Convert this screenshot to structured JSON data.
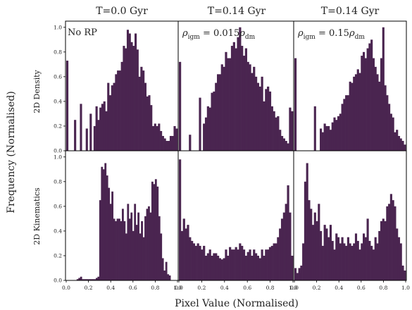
{
  "figure": {
    "xlabel": "Pixel Value (Normalised)",
    "ylabel": "Frequency (Normalised)",
    "columns": [
      "T=0.0 Gyr",
      "T=0.14 Gyr",
      "T=0.14 Gyr"
    ],
    "rows": [
      "2D Density",
      "2D Kinematics"
    ],
    "annotations": {
      "no_rp": "No RP",
      "rho_low": {
        "rho": "ρ",
        "rho_sub": "igm",
        "eq": " = 0.015",
        "rho2": "ρ",
        "rho2_sub": "dm"
      },
      "rho_high": {
        "rho": "ρ",
        "rho_sub": "igm",
        "eq": " = 0.15",
        "rho2": "ρ",
        "rho2_sub": "dm"
      }
    },
    "xticks": [
      "0.0",
      "0.2",
      "0.4",
      "0.6",
      "0.8",
      "1.0"
    ],
    "yticks": [
      "0.0",
      "0.2",
      "0.4",
      "0.6",
      "0.8",
      "1.0"
    ],
    "bar_color": "#4a2550"
  },
  "chart_data": [
    {
      "type": "bar",
      "panel": "2D Density / T=0.0 Gyr",
      "xlim": [
        0,
        1
      ],
      "ylim": [
        0,
        1.05
      ],
      "values": [
        0.73,
        0.0,
        0.0,
        0.0,
        0.25,
        0.0,
        0.0,
        0.38,
        0.0,
        0.0,
        0.18,
        0.0,
        0.3,
        0.0,
        0.2,
        0.36,
        0.25,
        0.35,
        0.38,
        0.4,
        0.32,
        0.55,
        0.45,
        0.53,
        0.55,
        0.62,
        0.65,
        0.65,
        0.72,
        0.85,
        0.83,
        0.98,
        0.95,
        0.88,
        0.85,
        0.95,
        0.82,
        0.6,
        0.68,
        0.65,
        0.55,
        0.44,
        0.45,
        0.37,
        0.2,
        0.22,
        0.2,
        0.22,
        0.16,
        0.12,
        0.1,
        0.08,
        0.08,
        0.12,
        0.12,
        0.2,
        0.18
      ]
    },
    {
      "type": "bar",
      "panel": "2D Density / T=0.14 Gyr (ρigm = 0.015ρdm)",
      "xlim": [
        0,
        1
      ],
      "ylim": [
        0,
        1.05
      ],
      "values": [
        0.72,
        0.0,
        0.0,
        0.0,
        0.0,
        0.13,
        0.0,
        0.0,
        0.0,
        0.0,
        0.43,
        0.0,
        0.22,
        0.27,
        0.36,
        0.35,
        0.47,
        0.48,
        0.55,
        0.62,
        0.62,
        0.7,
        0.68,
        0.8,
        0.75,
        0.75,
        0.85,
        0.88,
        0.83,
        0.92,
        1.0,
        0.85,
        0.77,
        0.83,
        0.72,
        0.7,
        0.63,
        0.68,
        0.6,
        0.55,
        0.52,
        0.6,
        0.4,
        0.5,
        0.52,
        0.48,
        0.36,
        0.32,
        0.27,
        0.28,
        0.17,
        0.12,
        0.1,
        0.08,
        0.06,
        0.35,
        0.32
      ]
    },
    {
      "type": "bar",
      "panel": "2D Density / T=0.14 Gyr (ρigm = 0.15ρdm)",
      "xlim": [
        0,
        1
      ],
      "ylim": [
        0,
        1.05
      ],
      "values": [
        0.75,
        0.0,
        0.0,
        0.0,
        0.0,
        0.0,
        0.0,
        0.0,
        0.0,
        0.0,
        0.36,
        0.0,
        0.0,
        0.18,
        0.15,
        0.22,
        0.2,
        0.2,
        0.17,
        0.23,
        0.27,
        0.25,
        0.28,
        0.3,
        0.38,
        0.42,
        0.45,
        0.45,
        0.56,
        0.55,
        0.6,
        0.62,
        0.66,
        0.63,
        0.77,
        0.8,
        0.75,
        0.83,
        0.87,
        0.9,
        0.75,
        0.68,
        0.62,
        0.56,
        0.75,
        1.0,
        0.53,
        0.45,
        0.38,
        0.3,
        0.27,
        0.15,
        0.17,
        0.12,
        0.1,
        0.08,
        0.05
      ]
    },
    {
      "type": "bar",
      "panel": "2D Kinematics / T=0.0 Gyr",
      "xlim": [
        0,
        1
      ],
      "ylim": [
        0,
        1.05
      ],
      "values": [
        0.0,
        0.0,
        0.0,
        0.0,
        0.0,
        0.0,
        0.01,
        0.02,
        0.03,
        0.01,
        0.01,
        0.01,
        0.01,
        0.01,
        0.01,
        0.01,
        0.01,
        0.02,
        0.03,
        0.65,
        0.92,
        0.9,
        0.95,
        0.85,
        0.75,
        0.62,
        0.72,
        0.5,
        0.48,
        0.5,
        0.5,
        0.48,
        0.58,
        0.48,
        0.38,
        0.62,
        0.5,
        0.55,
        0.4,
        0.62,
        0.45,
        0.55,
        0.38,
        0.48,
        0.35,
        0.52,
        0.58,
        0.6,
        0.55,
        0.8,
        0.78,
        0.82,
        0.76,
        0.52,
        0.38,
        0.18,
        0.08,
        0.15,
        0.05,
        0.04,
        0.0,
        0.0,
        0.0,
        0.0
      ]
    },
    {
      "type": "bar",
      "panel": "2D Kinematics / T=0.14 Gyr (ρigm = 0.015ρdm)",
      "xlim": [
        0,
        1
      ],
      "ylim": [
        0,
        1.05
      ],
      "values": [
        0.98,
        0.4,
        0.5,
        0.42,
        0.45,
        0.35,
        0.32,
        0.3,
        0.28,
        0.3,
        0.28,
        0.25,
        0.28,
        0.2,
        0.22,
        0.25,
        0.2,
        0.22,
        0.22,
        0.2,
        0.18,
        0.17,
        0.18,
        0.25,
        0.2,
        0.27,
        0.25,
        0.25,
        0.27,
        0.25,
        0.3,
        0.28,
        0.25,
        0.2,
        0.23,
        0.25,
        0.2,
        0.25,
        0.22,
        0.2,
        0.18,
        0.25,
        0.2,
        0.25,
        0.25,
        0.27,
        0.28,
        0.3,
        0.3,
        0.35,
        0.42,
        0.5,
        0.55,
        0.62,
        0.77,
        0.55,
        0.2
      ]
    },
    {
      "type": "bar",
      "panel": "2D Kinematics / T=0.14 Gyr (ρigm = 0.15ρdm)",
      "xlim": [
        0,
        1
      ],
      "ylim": [
        0,
        1.05
      ],
      "values": [
        0.1,
        0.06,
        0.1,
        0.12,
        0.3,
        0.8,
        0.95,
        0.65,
        0.58,
        0.45,
        0.55,
        0.48,
        0.62,
        0.4,
        0.28,
        0.45,
        0.42,
        0.35,
        0.45,
        0.32,
        0.25,
        0.38,
        0.35,
        0.3,
        0.35,
        0.3,
        0.28,
        0.35,
        0.3,
        0.28,
        0.3,
        0.38,
        0.32,
        0.25,
        0.3,
        0.38,
        0.35,
        0.5,
        0.32,
        0.28,
        0.25,
        0.35,
        0.3,
        0.4,
        0.48,
        0.5,
        0.48,
        0.6,
        0.62,
        0.7,
        0.65,
        0.6,
        0.42,
        0.35,
        0.3,
        0.12,
        0.08
      ]
    }
  ]
}
